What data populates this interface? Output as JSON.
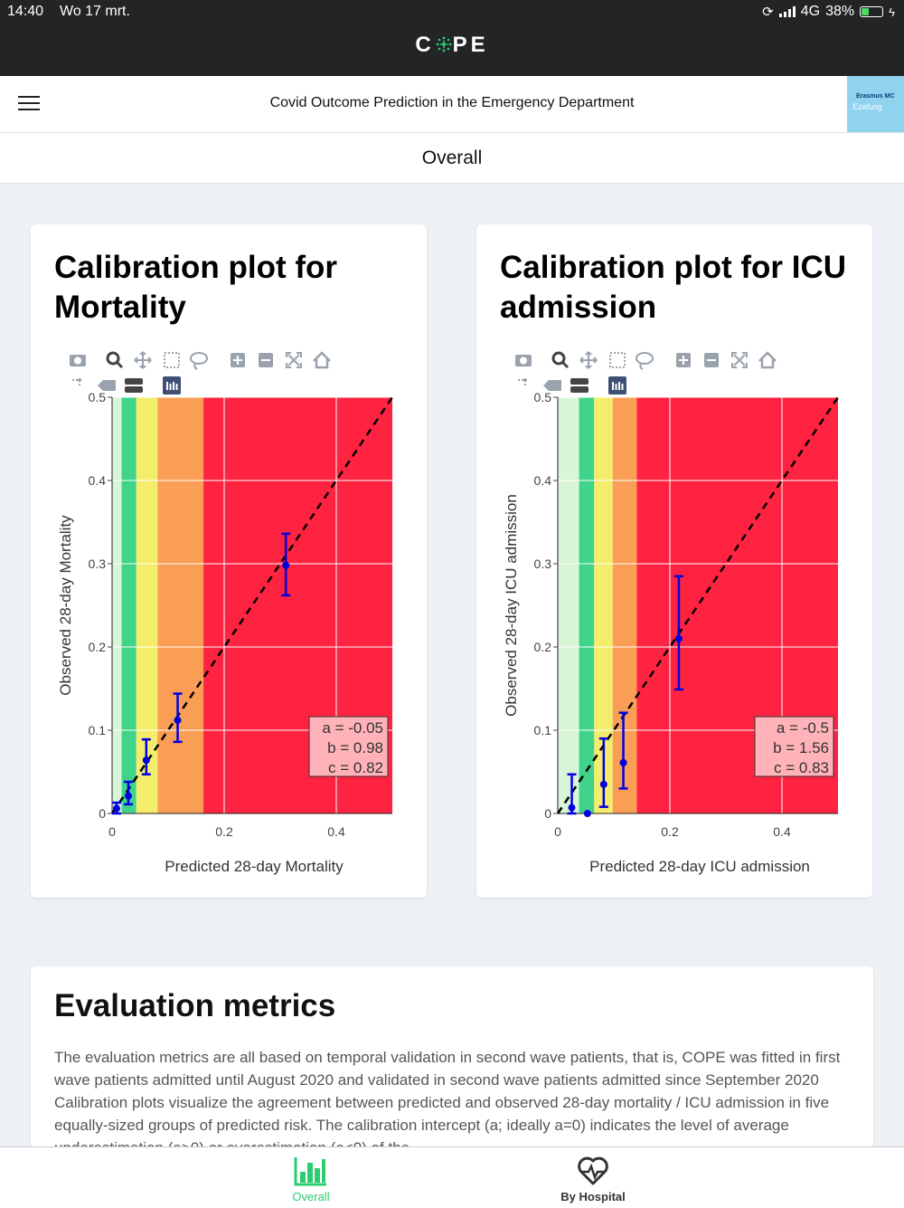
{
  "status_bar": {
    "time": "14:40",
    "date": "Wo 17 mrt.",
    "network": "4G",
    "battery": "38%"
  },
  "header": {
    "brand": "COPE",
    "title": "Covid Outcome Prediction in the Emergency Department",
    "logo_text": "Erasmus MC",
    "logo_script": "Ezafung"
  },
  "page_title": "Overall",
  "colors": {
    "accent": "#2ecc71",
    "risk_very_low": "#d8f5d8",
    "risk_low": "#40d38a",
    "risk_medium": "#f4ec6b",
    "risk_high": "#fa9e55",
    "risk_very_high": "#fe2340",
    "error_bar": "#0000e0"
  },
  "charts": [
    {
      "title": "Calibration plot for Mortality",
      "chart_data": {
        "type": "scatter",
        "title": "Calibration plot for Mortality",
        "xlabel": "Predicted 28-day Mortality",
        "ylabel": "Observed 28-day Mortality",
        "xlim": [
          0,
          0.5
        ],
        "ylim": [
          0,
          0.5
        ],
        "x_ticks": [
          "0",
          "0.2",
          "0.4"
        ],
        "y_ticks": [
          "0",
          "0.1",
          "0.2",
          "0.3",
          "0.4",
          "0.5"
        ],
        "risk_bands": [
          {
            "from": 0.0,
            "to": 0.017,
            "color": "#d8f5d8"
          },
          {
            "from": 0.017,
            "to": 0.043,
            "color": "#40d38a"
          },
          {
            "from": 0.043,
            "to": 0.081,
            "color": "#f4ec6b"
          },
          {
            "from": 0.081,
            "to": 0.163,
            "color": "#fa9e55"
          },
          {
            "from": 0.163,
            "to": 0.5,
            "color": "#fe2340"
          }
        ],
        "points": [
          {
            "x": 0.008,
            "y": 0.006,
            "low": 0.0,
            "high": 0.013
          },
          {
            "x": 0.029,
            "y": 0.021,
            "low": 0.011,
            "high": 0.038
          },
          {
            "x": 0.061,
            "y": 0.064,
            "low": 0.047,
            "high": 0.089
          },
          {
            "x": 0.117,
            "y": 0.112,
            "low": 0.086,
            "high": 0.144
          },
          {
            "x": 0.31,
            "y": 0.298,
            "low": 0.262,
            "high": 0.336
          }
        ],
        "reference_line": "y = x",
        "stats": [
          "a = -0.05",
          "b = 0.98",
          "c = 0.82"
        ],
        "grid": true
      }
    },
    {
      "title": "Calibration plot for ICU admission",
      "chart_data": {
        "type": "scatter",
        "title": "Calibration plot for ICU admission",
        "xlabel": "Predicted 28-day ICU admission",
        "ylabel": "Observed 28-day ICU admission",
        "xlim": [
          0,
          0.5
        ],
        "ylim": [
          0,
          0.5
        ],
        "x_ticks": [
          "0",
          "0.2",
          "0.4"
        ],
        "y_ticks": [
          "0",
          "0.1",
          "0.2",
          "0.3",
          "0.4",
          "0.5"
        ],
        "risk_bands": [
          {
            "from": 0.0,
            "to": 0.038,
            "color": "#d8f5d8"
          },
          {
            "from": 0.038,
            "to": 0.065,
            "color": "#40d38a"
          },
          {
            "from": 0.065,
            "to": 0.098,
            "color": "#f4ec6b"
          },
          {
            "from": 0.098,
            "to": 0.141,
            "color": "#fa9e55"
          },
          {
            "from": 0.141,
            "to": 0.5,
            "color": "#fe2340"
          }
        ],
        "points": [
          {
            "x": 0.025,
            "y": 0.007,
            "low": 0.0,
            "high": 0.047
          },
          {
            "x": 0.053,
            "y": 0.0,
            "low": 0.0,
            "high": 0.0
          },
          {
            "x": 0.082,
            "y": 0.035,
            "low": 0.008,
            "high": 0.09
          },
          {
            "x": 0.117,
            "y": 0.061,
            "low": 0.03,
            "high": 0.121
          },
          {
            "x": 0.216,
            "y": 0.21,
            "low": 0.149,
            "high": 0.285
          }
        ],
        "reference_line": "y = x",
        "stats": [
          "a = -0.5",
          "b = 1.56",
          "c = 0.83"
        ],
        "grid": true
      }
    }
  ],
  "metrics": {
    "title": "Evaluation metrics",
    "text": "The evaluation metrics are all based on temporal validation in second wave patients, that is, COPE was fitted in first wave patients admitted until August 2020 and validated in second wave patients admitted since September 2020 Calibration plots visualize the agreement between predicted and observed 28-day mortality / ICU admission in five equally-sized groups of predicted risk. The calibration intercept (a; ideally a=0) indicates the level of average underestimation (a>0) or overestimation (a<0) of the"
  },
  "bottom_nav": {
    "items": [
      {
        "label": "Overall",
        "icon": "bar-chart-icon",
        "active": true
      },
      {
        "label": "By Hospital",
        "icon": "heart-pulse-icon",
        "active": false
      }
    ]
  }
}
